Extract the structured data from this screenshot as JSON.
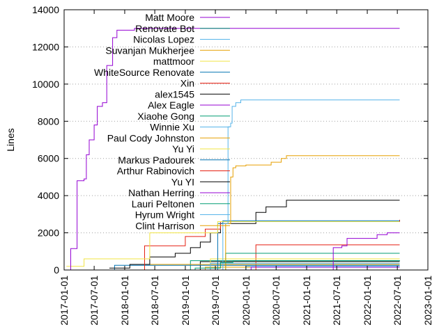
{
  "chart_data": {
    "type": "line",
    "title": "",
    "xlabel": "",
    "ylabel": "Lines",
    "x_axis": {
      "kind": "date",
      "range": [
        "2017-01-01",
        "2023-01-01"
      ],
      "ticks": [
        "2017-01-01",
        "2017-07-01",
        "2018-01-01",
        "2018-07-01",
        "2019-01-01",
        "2019-07-01",
        "2020-01-01",
        "2020-07-01",
        "2021-01-01",
        "2021-07-01",
        "2022-01-01",
        "2022-07-01",
        "2023-01-01"
      ]
    },
    "y_axis": {
      "range": [
        0,
        14000
      ],
      "ticks": [
        0,
        2000,
        4000,
        6000,
        8000,
        10000,
        12000,
        14000
      ],
      "grid": true
    },
    "legend": {
      "position": "top-right",
      "inside": true
    },
    "series": [
      {
        "name": "Matt Moore",
        "color": "#9400d3",
        "points": [
          [
            "2017-02-01",
            0
          ],
          [
            "2017-02-10",
            1150
          ],
          [
            "2017-03-15",
            1150
          ],
          [
            "2017-03-20",
            4800
          ],
          [
            "2017-05-01",
            4900
          ],
          [
            "2017-05-15",
            6200
          ],
          [
            "2017-06-01",
            7000
          ],
          [
            "2017-07-01",
            7800
          ],
          [
            "2017-07-20",
            8800
          ],
          [
            "2017-08-20",
            9000
          ],
          [
            "2017-09-15",
            11000
          ],
          [
            "2017-10-20",
            12500
          ],
          [
            "2017-11-15",
            12900
          ],
          [
            "2018-03-01",
            13000
          ],
          [
            "2019-06-01",
            13000
          ],
          [
            "2020-06-01",
            13000
          ],
          [
            "2022-07-15",
            13000
          ]
        ]
      },
      {
        "name": "Renovate Bot",
        "color": "#009e73",
        "points": [
          [
            "2018-07-01",
            0
          ],
          [
            "2019-03-01",
            100
          ],
          [
            "2019-08-01",
            400
          ],
          [
            "2019-10-15",
            500
          ],
          [
            "2022-07-15",
            520
          ]
        ]
      },
      {
        "name": "Nicolas Lopez",
        "color": "#56b4e9",
        "points": [
          [
            "2019-06-01",
            0
          ],
          [
            "2019-08-15",
            2500
          ],
          [
            "2019-09-15",
            7700
          ],
          [
            "2019-10-01",
            7900
          ],
          [
            "2019-10-10",
            8800
          ],
          [
            "2019-11-01",
            9000
          ],
          [
            "2019-12-01",
            9150
          ],
          [
            "2022-07-15",
            9150
          ]
        ]
      },
      {
        "name": "Suvanjan Mukherjee",
        "color": "#e69f00",
        "points": [
          [
            "2019-06-01",
            0
          ],
          [
            "2019-09-01",
            2500
          ],
          [
            "2019-10-01",
            5000
          ],
          [
            "2019-10-15",
            5500
          ],
          [
            "2019-11-01",
            5600
          ],
          [
            "2020-01-01",
            5650
          ],
          [
            "2020-06-01",
            5800
          ],
          [
            "2020-08-01",
            6000
          ],
          [
            "2020-09-01",
            6150
          ],
          [
            "2022-07-15",
            6150
          ]
        ]
      },
      {
        "name": "mattmoor",
        "color": "#f0e442",
        "points": [
          [
            "2017-01-15",
            200
          ],
          [
            "2017-05-01",
            600
          ],
          [
            "2017-11-01",
            600
          ],
          [
            "2018-06-01",
            2000
          ],
          [
            "2019-06-01",
            2000
          ],
          [
            "2019-07-15",
            2600
          ],
          [
            "2022-07-15",
            2600
          ]
        ]
      },
      {
        "name": "WhiteSource Renovate",
        "color": "#0072b2",
        "points": [
          [
            "2019-06-01",
            0
          ],
          [
            "2019-07-15",
            2500
          ],
          [
            "2019-08-15",
            2650
          ],
          [
            "2022-07-15",
            2650
          ]
        ]
      },
      {
        "name": "Xin",
        "color": "#e51e10",
        "points": [
          [
            "2018-04-01",
            0
          ],
          [
            "2018-05-01",
            1300
          ],
          [
            "2018-10-01",
            1300
          ],
          [
            "2019-01-01",
            1800
          ],
          [
            "2019-05-01",
            2200
          ],
          [
            "2019-08-01",
            2600
          ],
          [
            "2022-07-15",
            2700
          ]
        ]
      },
      {
        "name": "alex1545",
        "color": "#000000",
        "points": [
          [
            "2017-10-01",
            100
          ],
          [
            "2018-02-01",
            300
          ],
          [
            "2018-06-01",
            700
          ],
          [
            "2018-11-01",
            900
          ],
          [
            "2019-02-01",
            1200
          ],
          [
            "2019-04-01",
            1500
          ],
          [
            "2019-06-01",
            2000
          ],
          [
            "2019-08-01",
            2500
          ],
          [
            "2020-03-01",
            3100
          ],
          [
            "2020-05-01",
            3400
          ],
          [
            "2020-09-01",
            3750
          ],
          [
            "2022-07-15",
            3750
          ]
        ]
      },
      {
        "name": "Alex Eagle",
        "color": "#9400d3",
        "points": [
          [
            "2021-06-01",
            0
          ],
          [
            "2021-06-10",
            1200
          ],
          [
            "2021-08-01",
            1300
          ],
          [
            "2021-09-01",
            1700
          ],
          [
            "2022-03-01",
            1900
          ],
          [
            "2022-05-01",
            2000
          ],
          [
            "2022-07-15",
            2000
          ]
        ]
      },
      {
        "name": "Xiaohe Gong",
        "color": "#009e73",
        "points": [
          [
            "2019-06-01",
            0
          ],
          [
            "2019-09-01",
            900
          ],
          [
            "2022-07-15",
            900
          ]
        ]
      },
      {
        "name": "Winnie Xu",
        "color": "#56b4e9",
        "points": [
          [
            "2019-01-01",
            0
          ],
          [
            "2019-06-01",
            350
          ],
          [
            "2022-07-15",
            350
          ]
        ]
      },
      {
        "name": "Paul Cody Johnston",
        "color": "#e69f00",
        "points": [
          [
            "2018-03-01",
            0
          ],
          [
            "2018-05-01",
            300
          ],
          [
            "2022-07-15",
            300
          ]
        ]
      },
      {
        "name": "Yu Yi",
        "color": "#f0e442",
        "points": [
          [
            "2019-02-01",
            0
          ],
          [
            "2019-06-01",
            600
          ],
          [
            "2022-07-15",
            600
          ]
        ]
      },
      {
        "name": "Markus Padourek",
        "color": "#0072b2",
        "points": [
          [
            "2017-10-01",
            0
          ],
          [
            "2017-11-01",
            250
          ],
          [
            "2022-07-15",
            250
          ]
        ]
      },
      {
        "name": "Arthur Rabinovich",
        "color": "#e51e10",
        "points": [
          [
            "2020-01-01",
            0
          ],
          [
            "2020-03-01",
            1350
          ],
          [
            "2022-07-15",
            1350
          ]
        ]
      },
      {
        "name": "Yu YI",
        "color": "#000000",
        "points": [
          [
            "2019-01-01",
            0
          ],
          [
            "2019-04-01",
            450
          ],
          [
            "2022-07-15",
            450
          ]
        ]
      },
      {
        "name": "Nathan Herring",
        "color": "#9400d3",
        "points": [
          [
            "2019-08-01",
            0
          ],
          [
            "2020-02-01",
            150
          ],
          [
            "2022-07-15",
            150
          ]
        ]
      },
      {
        "name": "Lauri Peltonen",
        "color": "#009e73",
        "points": [
          [
            "2018-09-01",
            0
          ],
          [
            "2019-02-01",
            500
          ],
          [
            "2022-07-15",
            500
          ]
        ]
      },
      {
        "name": "Hyrum Wright",
        "color": "#56b4e9",
        "points": [
          [
            "2019-09-01",
            0
          ],
          [
            "2020-01-01",
            200
          ],
          [
            "2022-07-15",
            200
          ]
        ]
      },
      {
        "name": "Clint Harrison",
        "color": "#e69f00",
        "points": [
          [
            "2019-03-01",
            0
          ],
          [
            "2019-05-01",
            150
          ],
          [
            "2022-07-15",
            150
          ]
        ]
      }
    ]
  }
}
